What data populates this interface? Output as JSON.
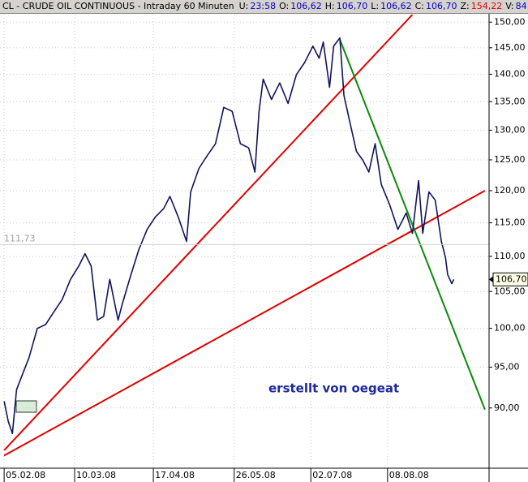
{
  "header": {
    "symbol": "CL - CRUDE OIL CONTINUOUS - Intraday 60 Minuten",
    "fields": [
      {
        "label": "U:",
        "value": "23:58",
        "color": "#0000c8"
      },
      {
        "label": "O:",
        "value": "106,62",
        "color": "#0000c8"
      },
      {
        "label": "H:",
        "value": "106,70",
        "color": "#0000c8"
      },
      {
        "label": "L:",
        "value": "106,62",
        "color": "#0000c8"
      },
      {
        "label": "C:",
        "value": "106,70",
        "color": "#0000c8"
      },
      {
        "label": "Z:",
        "value": "154,22",
        "color": "#e00000"
      },
      {
        "label": "V:",
        "value": "84",
        "color": "#0000c8"
      }
    ]
  },
  "chart_data": {
    "type": "line",
    "log_y": true,
    "grid": true,
    "xlim": [
      "2008-02-03",
      "2008-09-26"
    ],
    "ylim": [
      83.1,
      151.5
    ],
    "xticks": [
      {
        "value": "2008-02-05",
        "label": "05.02.08"
      },
      {
        "value": "2008-03-10",
        "label": "10.03.08"
      },
      {
        "value": "2008-04-17",
        "label": "17.04.08"
      },
      {
        "value": "2008-05-26",
        "label": "26.05.08"
      },
      {
        "value": "2008-07-02",
        "label": "02.07.08"
      },
      {
        "value": "2008-08-08",
        "label": "08.08.08"
      }
    ],
    "yticks": [
      {
        "value": 90,
        "label": "90,00"
      },
      {
        "value": 95,
        "label": "95,00"
      },
      {
        "value": 100,
        "label": "100,00"
      },
      {
        "value": 105,
        "label": "105,00"
      },
      {
        "value": 110,
        "label": "110,00"
      },
      {
        "value": 115,
        "label": "115,00"
      },
      {
        "value": 120,
        "label": "120,00"
      },
      {
        "value": 125,
        "label": "125,00"
      },
      {
        "value": 130,
        "label": "130,00"
      },
      {
        "value": 135,
        "label": "135,00"
      },
      {
        "value": 140,
        "label": "140,00"
      },
      {
        "value": 145,
        "label": "145,00"
      },
      {
        "value": 150,
        "label": "150,00"
      }
    ],
    "series": [
      {
        "color": "#12125e",
        "x": [
          "2008-02-05",
          "2008-02-07",
          "2008-02-09",
          "2008-02-11",
          "2008-02-14",
          "2008-02-17",
          "2008-02-21",
          "2008-02-25",
          "2008-02-29",
          "2008-03-04",
          "2008-03-08",
          "2008-03-12",
          "2008-03-15",
          "2008-03-18",
          "2008-03-21",
          "2008-03-24",
          "2008-03-27",
          "2008-03-31",
          "2008-04-02",
          "2008-04-06",
          "2008-04-10",
          "2008-04-14",
          "2008-04-18",
          "2008-04-22",
          "2008-04-25",
          "2008-04-29",
          "2008-05-03",
          "2008-05-05",
          "2008-05-09",
          "2008-05-13",
          "2008-05-17",
          "2008-05-21",
          "2008-05-25",
          "2008-05-29",
          "2008-06-02",
          "2008-06-05",
          "2008-06-07",
          "2008-06-09",
          "2008-06-13",
          "2008-06-17",
          "2008-06-21",
          "2008-06-25",
          "2008-06-29",
          "2008-07-03",
          "2008-07-06",
          "2008-07-08",
          "2008-07-11",
          "2008-07-13",
          "2008-07-16",
          "2008-07-18",
          "2008-07-21",
          "2008-07-24",
          "2008-07-27",
          "2008-07-30",
          "2008-08-02",
          "2008-08-05",
          "2008-08-09",
          "2008-08-13",
          "2008-08-17",
          "2008-08-20",
          "2008-08-23",
          "2008-08-25",
          "2008-08-28",
          "2008-08-31",
          "2008-09-03",
          "2008-09-05",
          "2008-09-06",
          "2008-09-08",
          "2008-09-09"
        ],
        "values": [
          90.8,
          88.4,
          87.0,
          92.2,
          94.2,
          96.2,
          100,
          100.5,
          102.2,
          103.9,
          106.7,
          108.6,
          110.4,
          108.6,
          101.1,
          101.6,
          106.7,
          101.1,
          103.3,
          107.2,
          111,
          114,
          115.9,
          117.2,
          119.1,
          115.9,
          112.2,
          119.8,
          123.6,
          125.7,
          127.7,
          134,
          133.3,
          127.7,
          127,
          123,
          133.3,
          139.1,
          135.4,
          138.4,
          134.7,
          139.9,
          142.2,
          145.3,
          143,
          146.1,
          137.6,
          145.3,
          146.9,
          136.1,
          131.1,
          126.4,
          125,
          123,
          127.7,
          121,
          117.8,
          114,
          116.5,
          113.4,
          121.6,
          113.4,
          119.8,
          118.5,
          112.2,
          109.8,
          107.4,
          106.1,
          106.7
        ]
      }
    ],
    "trend_lines": [
      {
        "color": "#e00000",
        "x": [
          "2008-02-05",
          "2008-08-20"
        ],
        "values": [
          85.1,
          151.5
        ]
      },
      {
        "color": "#e00000",
        "x": [
          "2008-02-05",
          "2008-09-24"
        ],
        "values": [
          84.5,
          120.0
        ]
      },
      {
        "color": "#0a8a0a",
        "x": [
          "2008-07-16",
          "2008-09-24"
        ],
        "values": [
          146.6,
          89.8
        ]
      }
    ],
    "reference_line": {
      "value": 111.73,
      "label": "111,73"
    },
    "last_value": {
      "value": 106.7,
      "label": "106,70"
    },
    "annotation": "erstellt von oegeat",
    "annotation_color": "#1c2a9c"
  }
}
